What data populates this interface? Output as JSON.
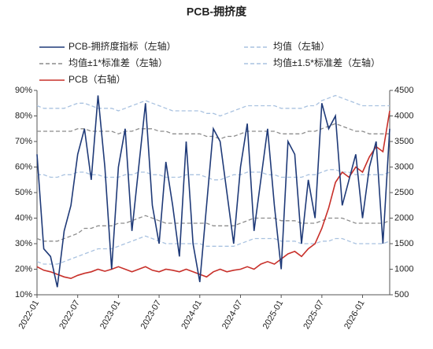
{
  "chart_data": {
    "type": "line",
    "title": "PCB-拥挤度",
    "categories": [
      "2022-01",
      null,
      null,
      null,
      null,
      null,
      "2022-07",
      null,
      null,
      null,
      null,
      null,
      "2023-01",
      null,
      null,
      null,
      null,
      null,
      "2023-07",
      null,
      null,
      null,
      null,
      null,
      "2024-01",
      null,
      null,
      null,
      null,
      null,
      "2024-07",
      null,
      null,
      null,
      null,
      null,
      "2025-01",
      null,
      null,
      null,
      null,
      null,
      "2025-07",
      null,
      null,
      null,
      null,
      null,
      "2026-01",
      null,
      null,
      null,
      null
    ],
    "ylim": [
      10,
      90
    ],
    "yticks": [
      {
        "value": 10,
        "label": "10%"
      },
      {
        "value": 20,
        "label": "20%"
      },
      {
        "value": 30,
        "label": "30%"
      },
      {
        "value": 40,
        "label": "40%"
      },
      {
        "value": 50,
        "label": "50%"
      },
      {
        "value": 60,
        "label": "60%"
      },
      {
        "value": 70,
        "label": "70%"
      },
      {
        "value": 80,
        "label": "80%"
      },
      {
        "value": 90,
        "label": "90%"
      }
    ],
    "y2lim": [
      500,
      4500
    ],
    "y2ticks": [
      500,
      1000,
      1500,
      2000,
      2500,
      3000,
      3500,
      4000,
      4500
    ],
    "series": [
      {
        "name": "PCB-拥挤度指标（左轴）",
        "color": "#1f3a78",
        "dashed": false,
        "values": [
          65,
          28,
          25,
          13,
          35,
          45,
          65,
          75,
          55,
          88,
          60,
          20,
          60,
          75,
          35,
          60,
          85,
          45,
          30,
          62,
          45,
          25,
          70,
          30,
          15,
          45,
          75,
          70,
          50,
          30,
          60,
          77,
          35,
          55,
          75,
          45,
          20,
          70,
          65,
          30,
          55,
          40,
          85,
          75,
          80,
          45,
          55,
          65,
          40,
          60,
          70,
          30,
          75
        ]
      },
      {
        "name": "均值（左轴）",
        "color": "#a9c2e0",
        "dashed": true,
        "values": [
          57,
          57,
          56,
          56,
          57,
          57,
          58,
          58,
          57,
          57,
          56,
          56,
          56,
          57,
          57,
          58,
          58,
          57,
          57,
          56,
          56,
          56,
          57,
          57,
          57,
          56,
          55,
          55,
          56,
          57,
          57,
          58,
          58,
          58,
          57,
          57,
          56,
          56,
          56,
          56,
          57,
          57,
          58,
          59,
          59,
          58,
          58,
          57,
          57,
          57,
          57,
          57,
          58
        ]
      },
      {
        "name": "均值±1*标准差（左轴）",
        "color": "#8c8c8c",
        "dashed": true,
        "values": [
          74,
          74,
          74,
          74,
          74,
          74,
          75,
          75,
          74,
          74,
          74,
          74,
          73,
          74,
          74,
          75,
          75,
          75,
          74,
          74,
          73,
          73,
          73,
          73,
          73,
          72,
          72,
          71,
          72,
          72,
          73,
          74,
          74,
          74,
          74,
          74,
          73,
          73,
          73,
          73,
          74,
          74,
          75,
          76,
          77,
          76,
          75,
          74,
          74,
          73,
          73,
          73,
          73
        ],
        "lower_values": [
          32,
          31,
          31,
          31,
          32,
          33,
          34,
          36,
          36,
          37,
          37,
          37,
          38,
          38,
          39,
          40,
          41,
          40,
          39,
          38,
          38,
          38,
          38,
          38,
          38,
          38,
          37,
          37,
          37,
          37,
          38,
          39,
          40,
          40,
          40,
          40,
          39,
          39,
          39,
          38,
          38,
          38,
          39,
          40,
          40,
          40,
          39,
          38,
          38,
          38,
          38,
          38,
          39
        ]
      },
      {
        "name": "均值±1.5*标准差（左轴）",
        "color": "#a9c2e0",
        "dashed": true,
        "values": [
          84,
          83,
          83,
          83,
          83,
          84,
          85,
          85,
          84,
          83,
          83,
          83,
          82,
          83,
          84,
          85,
          86,
          85,
          84,
          83,
          82,
          82,
          82,
          82,
          82,
          81,
          81,
          80,
          81,
          82,
          83,
          84,
          84,
          84,
          84,
          84,
          83,
          83,
          83,
          83,
          84,
          84,
          86,
          87,
          88,
          87,
          86,
          85,
          84,
          84,
          84,
          84,
          84
        ],
        "lower_values": [
          23,
          22,
          22,
          22,
          23,
          24,
          25,
          26,
          27,
          28,
          28,
          28,
          29,
          30,
          31,
          32,
          33,
          32,
          31,
          30,
          30,
          30,
          30,
          30,
          30,
          29,
          29,
          29,
          29,
          29,
          30,
          31,
          32,
          32,
          32,
          32,
          31,
          31,
          31,
          30,
          30,
          30,
          31,
          31,
          32,
          32,
          31,
          30,
          30,
          30,
          30,
          30,
          31
        ]
      },
      {
        "name": "PCB（右轴）",
        "color": "#c8302a",
        "dashed": false,
        "axis": "y2",
        "values": [
          1050,
          980,
          950,
          900,
          850,
          820,
          880,
          920,
          950,
          1000,
          960,
          1000,
          1050,
          1000,
          950,
          1000,
          1050,
          980,
          950,
          1000,
          980,
          950,
          1000,
          950,
          900,
          850,
          950,
          1000,
          950,
          980,
          1000,
          1050,
          1000,
          1100,
          1150,
          1100,
          1200,
          1300,
          1350,
          1250,
          1400,
          1500,
          1800,
          2200,
          2700,
          2900,
          2800,
          3000,
          2900,
          3200,
          3400,
          3300,
          4100
        ]
      }
    ]
  }
}
